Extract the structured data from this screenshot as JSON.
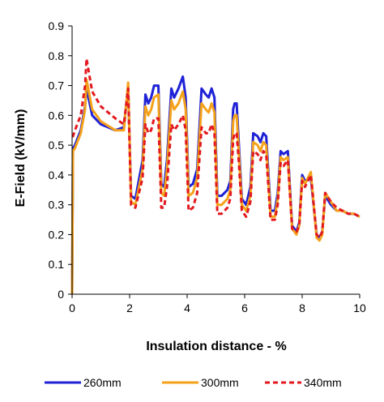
{
  "chart_data": {
    "type": "line",
    "title": "",
    "xlabel": "Insulation distance - %",
    "ylabel": "E-Field (kV/mm)",
    "xlim": [
      0,
      10
    ],
    "ylim": [
      0,
      0.9
    ],
    "x_ticks": [
      "0",
      "2",
      "4",
      "6",
      "8",
      "10"
    ],
    "y_ticks": [
      "0",
      "0.1",
      "0.2",
      "0.3",
      "0.4",
      "0.5",
      "0.6",
      "0.7",
      "0.8",
      "0.9"
    ],
    "grid": false,
    "legend_position": "bottom",
    "series": [
      {
        "name": "260mm",
        "color": "#1f22d6",
        "style": "solid",
        "x": [
          0,
          0.03,
          0.1,
          0.3,
          0.45,
          0.5,
          0.7,
          1.0,
          1.5,
          1.8,
          1.95,
          2.05,
          2.2,
          2.45,
          2.55,
          2.65,
          2.75,
          2.85,
          3.0,
          3.1,
          3.2,
          3.3,
          3.45,
          3.55,
          3.7,
          3.85,
          3.95,
          4.05,
          4.2,
          4.35,
          4.5,
          4.65,
          4.75,
          4.85,
          4.95,
          5.05,
          5.2,
          5.4,
          5.5,
          5.6,
          5.65,
          5.72,
          5.8,
          5.9,
          6.05,
          6.2,
          6.3,
          6.45,
          6.55,
          6.65,
          6.75,
          6.9,
          7.05,
          7.15,
          7.25,
          7.35,
          7.5,
          7.65,
          7.8,
          7.9,
          8.0,
          8.1,
          8.3,
          8.5,
          8.6,
          8.7,
          8.8,
          9.0,
          9.2,
          9.4,
          9.6,
          9.8,
          10.0
        ],
        "y": [
          0,
          0.49,
          0.5,
          0.55,
          0.63,
          0.69,
          0.6,
          0.57,
          0.55,
          0.56,
          0.7,
          0.33,
          0.32,
          0.45,
          0.67,
          0.64,
          0.66,
          0.7,
          0.7,
          0.37,
          0.36,
          0.45,
          0.69,
          0.66,
          0.69,
          0.73,
          0.66,
          0.36,
          0.37,
          0.42,
          0.69,
          0.67,
          0.66,
          0.69,
          0.66,
          0.33,
          0.33,
          0.35,
          0.38,
          0.62,
          0.64,
          0.64,
          0.5,
          0.32,
          0.3,
          0.36,
          0.54,
          0.53,
          0.51,
          0.54,
          0.53,
          0.28,
          0.28,
          0.34,
          0.48,
          0.47,
          0.48,
          0.23,
          0.21,
          0.24,
          0.4,
          0.38,
          0.39,
          0.2,
          0.19,
          0.21,
          0.33,
          0.3,
          0.28,
          0.28,
          0.27,
          0.27,
          0.26
        ]
      },
      {
        "name": "300mm",
        "color": "#f5a21b",
        "style": "solid",
        "x": [
          0,
          0.03,
          0.1,
          0.3,
          0.45,
          0.5,
          0.7,
          1.0,
          1.5,
          1.8,
          1.95,
          2.05,
          2.2,
          2.45,
          2.55,
          2.65,
          2.75,
          2.85,
          3.0,
          3.1,
          3.2,
          3.3,
          3.45,
          3.55,
          3.7,
          3.85,
          3.95,
          4.05,
          4.2,
          4.35,
          4.5,
          4.65,
          4.75,
          4.85,
          4.95,
          5.05,
          5.2,
          5.4,
          5.5,
          5.6,
          5.65,
          5.72,
          5.8,
          5.9,
          6.05,
          6.2,
          6.3,
          6.45,
          6.55,
          6.65,
          6.75,
          6.9,
          7.05,
          7.15,
          7.25,
          7.35,
          7.5,
          7.65,
          7.8,
          7.9,
          8.0,
          8.1,
          8.3,
          8.5,
          8.6,
          8.7,
          8.8,
          9.0,
          9.2,
          9.4,
          9.6,
          9.8,
          10.0
        ],
        "y": [
          0,
          0.48,
          0.49,
          0.54,
          0.62,
          0.72,
          0.62,
          0.58,
          0.55,
          0.55,
          0.71,
          0.31,
          0.3,
          0.42,
          0.63,
          0.6,
          0.62,
          0.66,
          0.67,
          0.34,
          0.33,
          0.42,
          0.65,
          0.62,
          0.64,
          0.68,
          0.62,
          0.33,
          0.34,
          0.39,
          0.64,
          0.62,
          0.61,
          0.64,
          0.61,
          0.3,
          0.3,
          0.32,
          0.35,
          0.58,
          0.6,
          0.6,
          0.47,
          0.3,
          0.28,
          0.33,
          0.51,
          0.5,
          0.48,
          0.51,
          0.5,
          0.26,
          0.26,
          0.32,
          0.46,
          0.45,
          0.46,
          0.22,
          0.2,
          0.23,
          0.39,
          0.37,
          0.41,
          0.19,
          0.18,
          0.2,
          0.34,
          0.31,
          0.28,
          0.28,
          0.27,
          0.27,
          0.26
        ]
      },
      {
        "name": "340mm",
        "color": "#e3191f",
        "style": "dashed",
        "x": [
          0,
          0.03,
          0.1,
          0.3,
          0.45,
          0.5,
          0.7,
          1.0,
          1.5,
          1.8,
          1.95,
          2.05,
          2.2,
          2.45,
          2.55,
          2.65,
          2.75,
          2.85,
          3.0,
          3.1,
          3.2,
          3.3,
          3.45,
          3.55,
          3.7,
          3.85,
          3.95,
          4.05,
          4.2,
          4.35,
          4.5,
          4.65,
          4.75,
          4.85,
          4.95,
          5.05,
          5.2,
          5.4,
          5.5,
          5.6,
          5.65,
          5.72,
          5.8,
          5.9,
          6.05,
          6.2,
          6.3,
          6.45,
          6.55,
          6.65,
          6.75,
          6.9,
          7.05,
          7.15,
          7.25,
          7.35,
          7.5,
          7.65,
          7.8,
          7.9,
          8.0,
          8.1,
          8.3,
          8.5,
          8.6,
          8.7,
          8.8,
          9.0,
          9.2,
          9.4,
          9.6,
          9.8,
          10.0
        ],
        "y": [
          0.53,
          0.53,
          0.55,
          0.6,
          0.7,
          0.79,
          0.68,
          0.63,
          0.59,
          0.57,
          0.69,
          0.3,
          0.29,
          0.39,
          0.57,
          0.54,
          0.55,
          0.59,
          0.59,
          0.29,
          0.29,
          0.36,
          0.57,
          0.55,
          0.57,
          0.6,
          0.55,
          0.28,
          0.29,
          0.34,
          0.56,
          0.54,
          0.54,
          0.57,
          0.54,
          0.27,
          0.27,
          0.29,
          0.32,
          0.52,
          0.54,
          0.54,
          0.44,
          0.28,
          0.26,
          0.31,
          0.48,
          0.47,
          0.45,
          0.48,
          0.47,
          0.25,
          0.25,
          0.3,
          0.44,
          0.43,
          0.45,
          0.22,
          0.21,
          0.23,
          0.38,
          0.36,
          0.4,
          0.2,
          0.19,
          0.21,
          0.34,
          0.31,
          0.29,
          0.28,
          0.27,
          0.27,
          0.26
        ]
      }
    ]
  }
}
